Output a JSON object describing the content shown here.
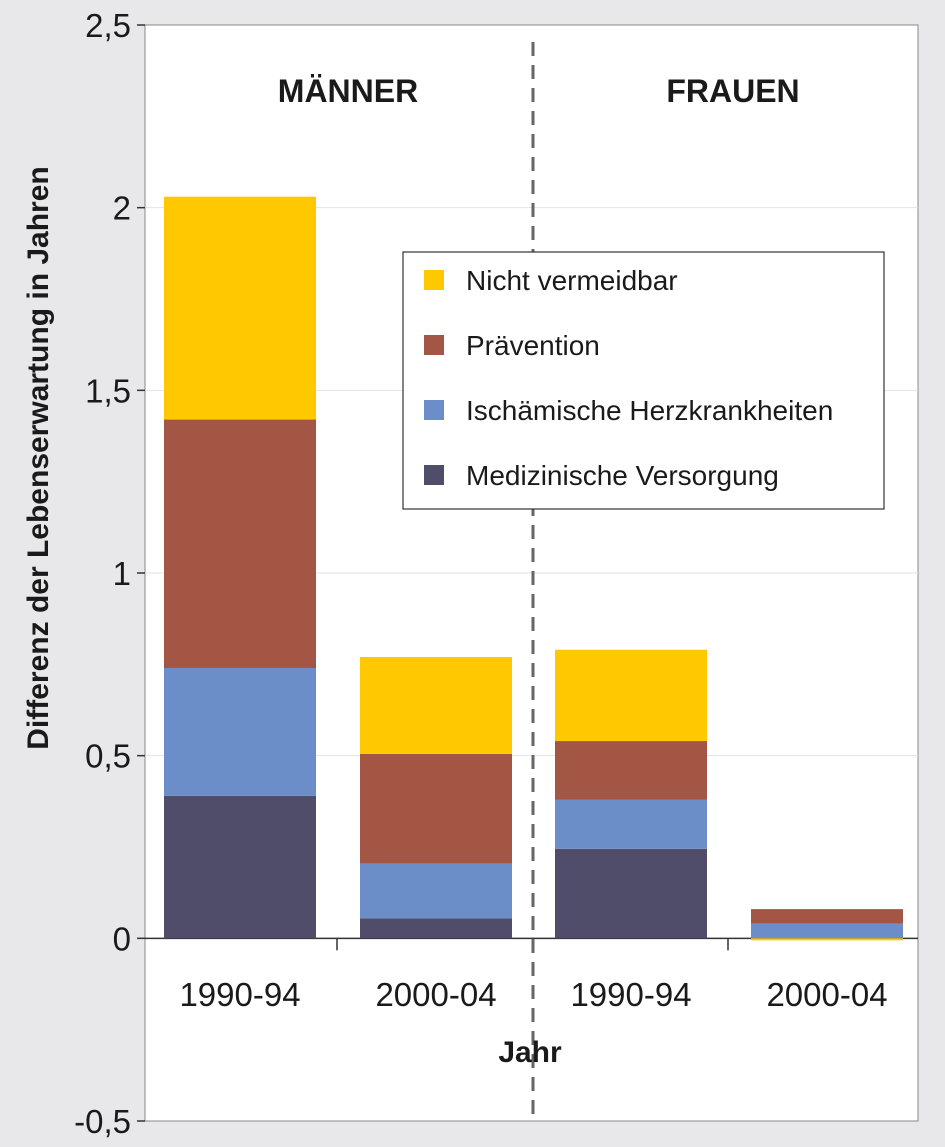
{
  "chart_data": {
    "type": "bar",
    "stacked": true,
    "ylabel": "Differenz der Lebenserwartung in Jahren",
    "xlabel": "Jahr",
    "ylim": [
      -0.5,
      2.5
    ],
    "yticks": [
      -0.5,
      0,
      0.5,
      1,
      1.5,
      2,
      2.5
    ],
    "ytick_labels": [
      "-0,5",
      "0",
      "0,5",
      "1",
      "1,5",
      "2",
      "2,5"
    ],
    "groups": [
      "MÄNNER",
      "FRAUEN"
    ],
    "categories": [
      "1990-94",
      "2000-04",
      "1990-94",
      "2000-04"
    ],
    "category_groups": [
      "MÄNNER",
      "MÄNNER",
      "FRAUEN",
      "FRAUEN"
    ],
    "series": [
      {
        "name": "Medizinische Versorgung",
        "color": "#504d6b",
        "values": [
          0.39,
          0.055,
          0.245,
          0.0
        ]
      },
      {
        "name": "Ischämische Herzkrankheiten",
        "color": "#6b8dc8",
        "values": [
          0.35,
          0.15,
          0.135,
          0.04
        ]
      },
      {
        "name": "Prävention",
        "color": "#a35644",
        "values": [
          0.68,
          0.3,
          0.16,
          0.04
        ]
      },
      {
        "name": "Nicht vermeidbar",
        "color": "#ffc800",
        "values": [
          0.61,
          0.265,
          0.25,
          -0.005
        ]
      }
    ],
    "legend_order": [
      "Nicht vermeidbar",
      "Prävention",
      "Ischämische Herzkrankheiten",
      "Medizinische Versorgung"
    ],
    "legend_position": "top-right",
    "grid": true,
    "group_divider": "dashed"
  }
}
